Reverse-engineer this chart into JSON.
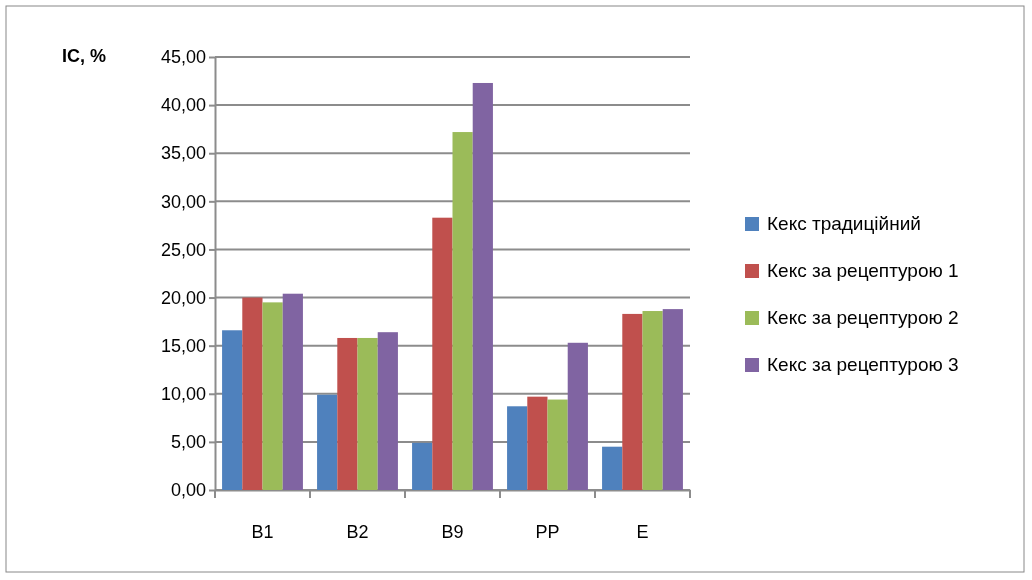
{
  "chart_data": {
    "type": "bar",
    "ylabel": "IC, %",
    "categories": [
      "B1",
      "B2",
      "B9",
      "PP",
      "E"
    ],
    "series": [
      {
        "name": "Кекс традиційний",
        "color": "#4f81bd",
        "values": [
          16.6,
          9.9,
          4.9,
          8.7,
          4.5
        ]
      },
      {
        "name": "Кекс за рецептурою 1",
        "color": "#c0504d",
        "values": [
          20.0,
          15.8,
          28.3,
          9.7,
          18.3
        ]
      },
      {
        "name": "Кекс за рецептурою 2",
        "color": "#9bbb59",
        "values": [
          19.5,
          15.8,
          37.2,
          9.4,
          18.6
        ]
      },
      {
        "name": "Кекс за рецептурою 3",
        "color": "#8064a2",
        "values": [
          20.4,
          16.4,
          42.3,
          15.3,
          18.8
        ]
      }
    ],
    "ylim": [
      0,
      45
    ],
    "yticks": [
      {
        "value": 0,
        "label": "0,00"
      },
      {
        "value": 5,
        "label": "5,00"
      },
      {
        "value": 10,
        "label": "10,00"
      },
      {
        "value": 15,
        "label": "15,00"
      },
      {
        "value": 20,
        "label": "20,00"
      },
      {
        "value": 25,
        "label": "25,00"
      },
      {
        "value": 30,
        "label": "30,00"
      },
      {
        "value": 35,
        "label": "35,00"
      },
      {
        "value": 40,
        "label": "40,00"
      },
      {
        "value": 45,
        "label": "45,00"
      }
    ],
    "grid": "y",
    "legend": "right"
  }
}
